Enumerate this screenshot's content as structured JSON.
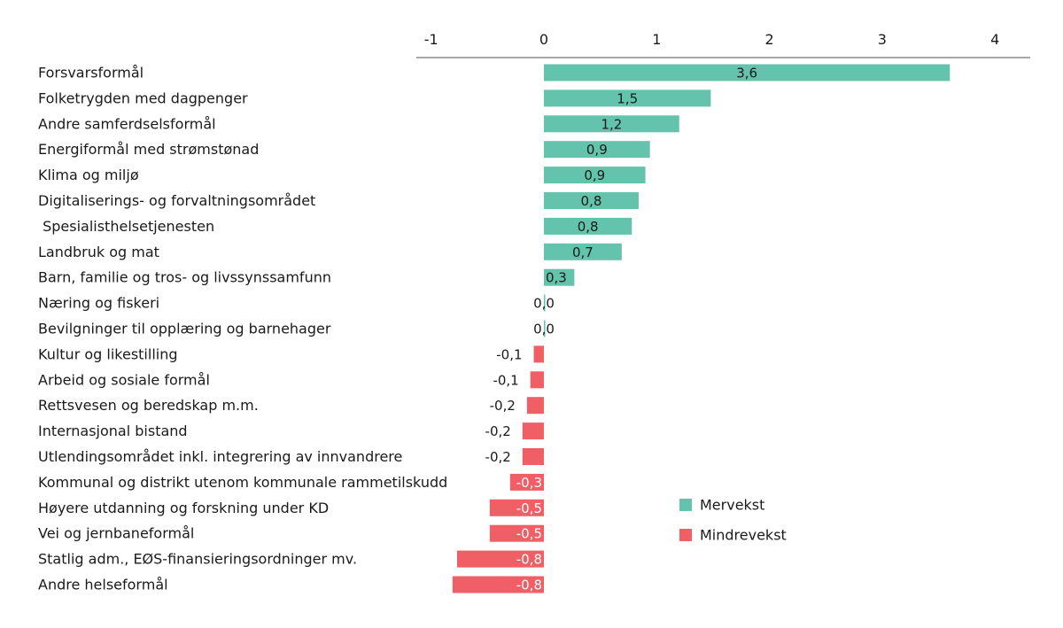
{
  "chart_data": {
    "type": "bar",
    "orientation": "horizontal",
    "title": "",
    "xlabel": "",
    "ylabel": "",
    "xlim": [
      -1,
      4.4
    ],
    "x_ticks": [
      -1,
      0,
      1,
      2,
      3,
      4
    ],
    "x_tick_labels": [
      "-1",
      "0",
      "1",
      "2",
      "3",
      "4"
    ],
    "x_axis_position": "top",
    "grid": false,
    "legend_position": "bottom-right",
    "legend": [
      {
        "name": "Mervekst",
        "color": "#63c3ac"
      },
      {
        "name": "Mindrevekst",
        "color": "#ef5f65"
      }
    ],
    "categories": [
      "Forsvarsformål",
      "Folketrygden med dagpenger",
      "Andre samferdselsformål",
      "Energiformål med strømstønad",
      "Klima og miljø",
      "Digitaliserings- og forvaltningsområdet",
      " Spesialisthelsetjenesten",
      "Landbruk og mat",
      "Barn, familie og tros- og livssynssamfunn",
      "Næring og fiskeri",
      "Bevilgninger til opplæring og barnehager",
      "Kultur og likestilling",
      "Arbeid og sosiale formål",
      "Rettsvesen og beredskap m.m.",
      "Internasjonal bistand",
      "Utlendingsområdet inkl. integrering av innvandrere",
      "Kommunal og distrikt utenom kommunale rammetilskudd",
      "Høyere utdanning og forskning under KD",
      "Vei og jernbaneformål",
      "Statlig adm., EØS-finansieringsordninger mv.",
      "Andre helseformål"
    ],
    "values": [
      3.6,
      1.48,
      1.2,
      0.94,
      0.9,
      0.84,
      0.78,
      0.69,
      0.27,
      0.01,
      0.01,
      -0.09,
      -0.12,
      -0.15,
      -0.19,
      -0.19,
      -0.3,
      -0.48,
      -0.48,
      -0.77,
      -0.81
    ],
    "value_labels": [
      "3,6",
      "1,5",
      "1,2",
      "0,9",
      "0,9",
      "0,8",
      "0,8",
      "0,7",
      "0,3",
      "0,0",
      "0,0",
      "-0,1",
      "-0,1",
      "-0,2",
      "-0,2",
      "-0,2",
      "-0,3",
      "-0,5",
      "-0,5",
      "-0,8",
      "-0,8"
    ],
    "series": [
      {
        "name": "Mervekst",
        "color": "#63c3ac",
        "applies_to": "positive values"
      },
      {
        "name": "Mindrevekst",
        "color": "#ef5f65",
        "applies_to": "negative values"
      }
    ],
    "colors": {
      "positive": "#63c3ac",
      "negative": "#ef5f65",
      "axis": "#8c8c8c",
      "text": "#1a1a1a",
      "inside_label_on_negative": "#ffffff"
    }
  }
}
